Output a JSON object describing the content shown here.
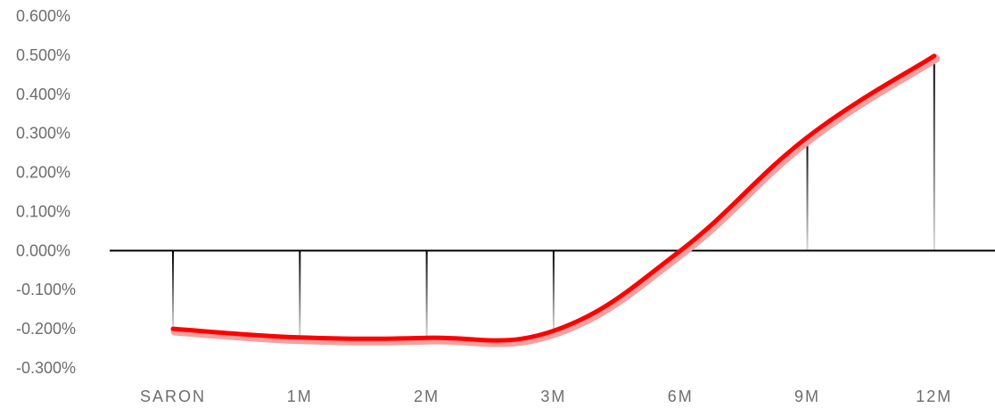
{
  "chart_data": {
    "type": "line",
    "title": "",
    "xlabel": "",
    "ylabel": "",
    "categories": [
      "SARON",
      "1M",
      "2M",
      "3M",
      "6M",
      "9M",
      "12M"
    ],
    "series": [
      {
        "values": [
          -0.2,
          -0.222,
          -0.223,
          -0.205,
          0.0,
          0.29,
          0.498
        ]
      }
    ],
    "ylim": [
      -0.3,
      0.6
    ],
    "ytick_values": [
      0.6,
      0.5,
      0.4,
      0.3,
      0.2,
      0.1,
      0.0,
      -0.1,
      -0.2,
      -0.3
    ],
    "ytick_labels": [
      "0.600%",
      "0.500%",
      "0.400%",
      "0.300%",
      "0.200%",
      "0.100%",
      "0.000%",
      "-0.100%",
      "-0.200%",
      "-0.300%"
    ],
    "grid": false,
    "legend": "none",
    "colors": {
      "line": "#ff0000",
      "line_glow": "#f4a0a0",
      "axis": "#000000",
      "drop_line_top": "#000000",
      "drop_line_bottom": "#d9d9d9",
      "tick_text": "#6d6d6d"
    }
  }
}
